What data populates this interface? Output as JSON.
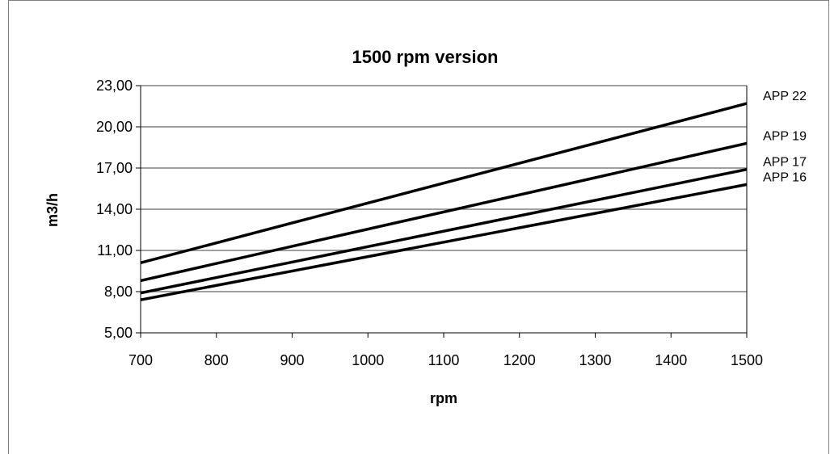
{
  "chart_data": {
    "type": "line",
    "title": "1500 rpm version",
    "xlabel": "rpm",
    "ylabel": "m3/h",
    "xlim": [
      700,
      1500
    ],
    "ylim": [
      5,
      23
    ],
    "x_ticks": [
      "700",
      "800",
      "900",
      "1000",
      "1100",
      "1200",
      "1300",
      "1400",
      "1500"
    ],
    "x_tick_values": [
      700,
      800,
      900,
      1000,
      1100,
      1200,
      1300,
      1400,
      1500
    ],
    "y_ticks": [
      "5,00",
      "8,00",
      "11,00",
      "14,00",
      "17,00",
      "20,00",
      "23,00"
    ],
    "y_tick_values": [
      5,
      8,
      11,
      14,
      17,
      20,
      23
    ],
    "grid": "horizontal",
    "series": [
      {
        "name": "APP 22",
        "x": [
          700,
          1500
        ],
        "y": [
          10.1,
          21.7
        ]
      },
      {
        "name": "APP 19",
        "x": [
          700,
          1500
        ],
        "y": [
          8.8,
          18.8
        ]
      },
      {
        "name": "APP 17",
        "x": [
          700,
          1500
        ],
        "y": [
          7.9,
          16.9
        ]
      },
      {
        "name": "APP 16",
        "x": [
          700,
          1500
        ],
        "y": [
          7.4,
          15.8
        ]
      }
    ],
    "line_color": "#000000",
    "grid_color": "#808080"
  }
}
